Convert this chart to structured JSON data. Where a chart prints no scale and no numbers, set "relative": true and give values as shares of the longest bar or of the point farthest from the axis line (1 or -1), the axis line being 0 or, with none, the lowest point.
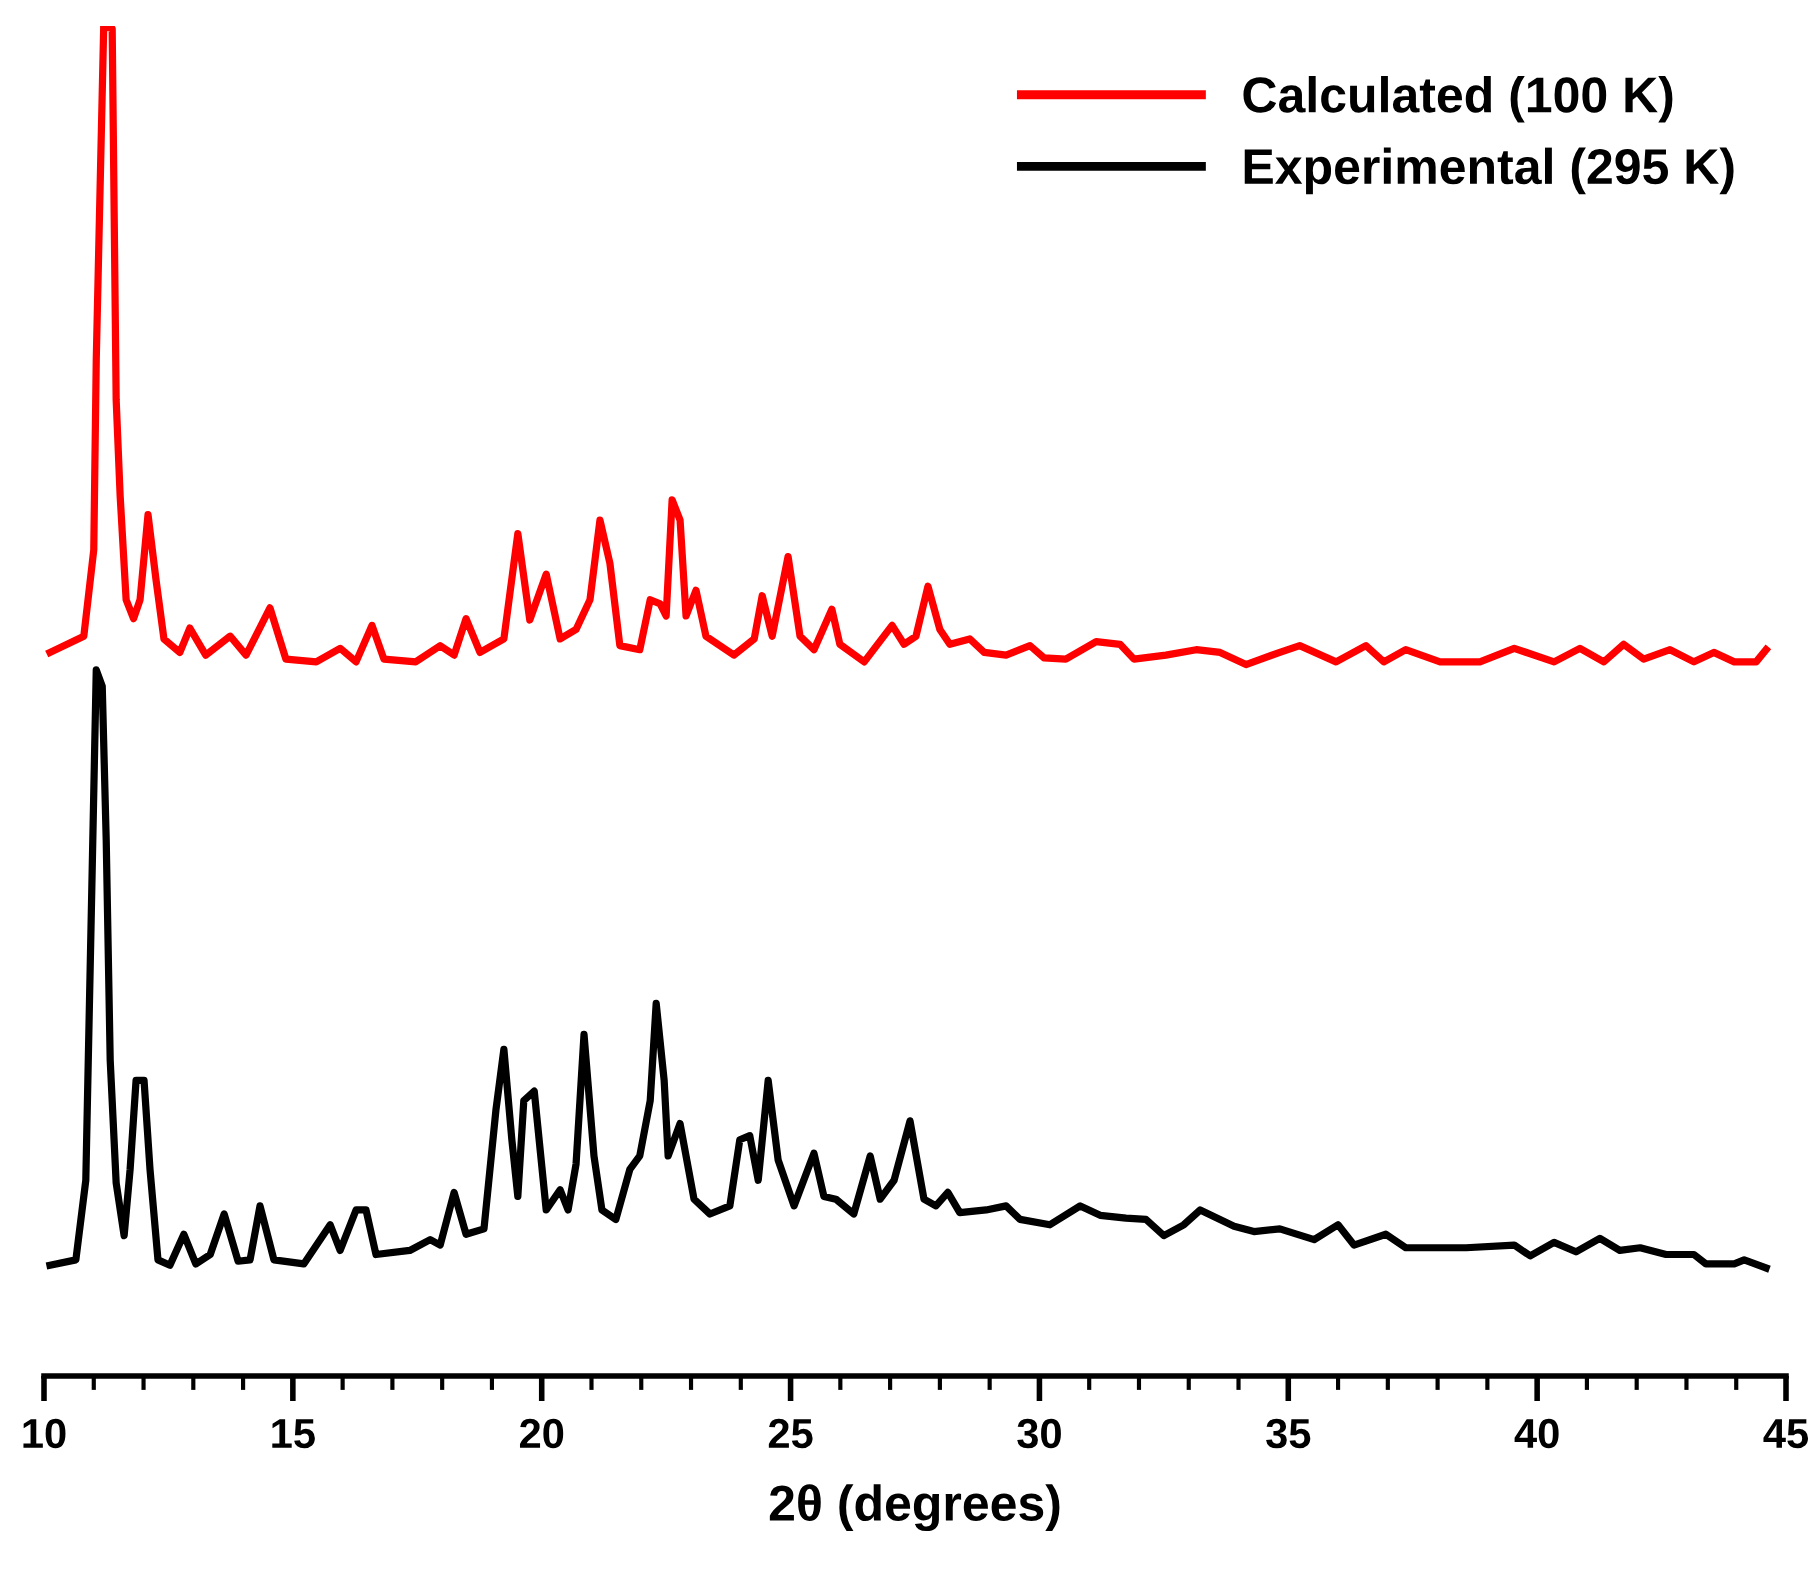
{
  "chart_data": {
    "type": "line",
    "relative": true,
    "xlabel": "2θ (degrees)",
    "xlim": [
      10,
      45
    ],
    "xticks": [
      10,
      {
        "value": 11,
        "label": null
      },
      {
        "value": 12,
        "label": null
      },
      {
        "value": 13,
        "label": null
      },
      {
        "value": 14,
        "label": null
      },
      15,
      {
        "value": 16,
        "label": null
      },
      {
        "value": 17,
        "label": null
      },
      {
        "value": 18,
        "label": null
      },
      {
        "value": 19,
        "label": null
      },
      20,
      {
        "value": 21,
        "label": null
      },
      {
        "value": 22,
        "label": null
      },
      {
        "value": 23,
        "label": null
      },
      {
        "value": 24,
        "label": null
      },
      25,
      {
        "value": 26,
        "label": null
      },
      {
        "value": 27,
        "label": null
      },
      {
        "value": 28,
        "label": null
      },
      {
        "value": 29,
        "label": null
      },
      30,
      {
        "value": 31,
        "label": null
      },
      {
        "value": 32,
        "label": null
      },
      {
        "value": 33,
        "label": null
      },
      {
        "value": 34,
        "label": null
      },
      35,
      {
        "value": 36,
        "label": null
      },
      {
        "value": 37,
        "label": null
      },
      {
        "value": 38,
        "label": null
      },
      {
        "value": 39,
        "label": null
      },
      40,
      {
        "value": 41,
        "label": null
      },
      {
        "value": 42,
        "label": null
      },
      {
        "value": 43,
        "label": null
      },
      {
        "value": 44,
        "label": null
      },
      45
    ],
    "tick_labels": "x",
    "legend": "top right",
    "grid": false,
    "marker": "none",
    "line_style": "solid",
    "series": [
      {
        "name": "Calculated (100 K)",
        "color": "#ff0000",
        "x": [
          10.12,
          10.8,
          11.0,
          11.05,
          11.2,
          11.37,
          11.45,
          11.53,
          11.65,
          11.8,
          11.93,
          12.09,
          12.25,
          12.41,
          12.73,
          12.93,
          13.25,
          13.74,
          14.06,
          14.54,
          14.86,
          15.47,
          15.95,
          16.27,
          16.59,
          16.83,
          17.47,
          17.96,
          18.24,
          18.48,
          18.76,
          19.24,
          19.52,
          19.76,
          20.09,
          20.37,
          20.69,
          20.97,
          21.17,
          21.37,
          21.57,
          21.97,
          22.18,
          22.38,
          22.5,
          22.62,
          22.78,
          22.9,
          23.1,
          23.3,
          23.86,
          24.27,
          24.43,
          24.63,
          24.95,
          25.19,
          25.47,
          25.83,
          25.99,
          26.48,
          27.04,
          27.28,
          27.52,
          27.76,
          28.0,
          28.2,
          28.6,
          28.89,
          29.33,
          29.81,
          30.09,
          30.53,
          31.14,
          31.62,
          31.9,
          32.54,
          33.15,
          33.63,
          34.15,
          34.83,
          35.23,
          35.96,
          36.56,
          36.92,
          37.36,
          38.05,
          38.85,
          39.54,
          40.34,
          40.86,
          41.34,
          41.74,
          42.14,
          42.67,
          43.15,
          43.55,
          43.96,
          44.4,
          44.6
        ],
        "values": [
          0.536,
          0.548,
          0.612,
          0.753,
          1.0,
          0.998,
          0.723,
          0.652,
          0.575,
          0.561,
          0.575,
          0.638,
          0.59,
          0.546,
          0.536,
          0.554,
          0.534,
          0.548,
          0.534,
          0.569,
          0.531,
          0.529,
          0.539,
          0.529,
          0.556,
          0.531,
          0.529,
          0.541,
          0.534,
          0.561,
          0.536,
          0.546,
          0.624,
          0.56,
          0.594,
          0.546,
          0.553,
          0.575,
          0.634,
          0.602,
          0.541,
          0.538,
          0.575,
          0.572,
          0.563,
          0.649,
          0.634,
          0.563,
          0.582,
          0.548,
          0.534,
          0.546,
          0.578,
          0.548,
          0.607,
          0.548,
          0.538,
          0.568,
          0.542,
          0.529,
          0.556,
          0.542,
          0.548,
          0.585,
          0.553,
          0.542,
          0.546,
          0.536,
          0.534,
          0.541,
          0.532,
          0.531,
          0.544,
          0.542,
          0.531,
          0.534,
          0.538,
          0.536,
          0.527,
          0.536,
          0.541,
          0.529,
          0.541,
          0.529,
          0.538,
          0.529,
          0.529,
          0.539,
          0.529,
          0.539,
          0.529,
          0.542,
          0.531,
          0.538,
          0.529,
          0.536,
          0.529,
          0.529,
          0.538
        ]
      },
      {
        "name": "Experimental (295 K)",
        "color": "#000000",
        "x": [
          10.12,
          10.64,
          10.84,
          10.96,
          11.05,
          11.17,
          11.25,
          11.33,
          11.45,
          11.61,
          11.73,
          11.85,
          12.01,
          12.13,
          12.29,
          12.53,
          12.81,
          13.05,
          13.34,
          13.62,
          13.9,
          14.14,
          14.34,
          14.62,
          15.22,
          15.75,
          15.95,
          16.27,
          16.47,
          16.67,
          17.35,
          17.76,
          17.96,
          18.24,
          18.48,
          18.84,
          19.08,
          19.24,
          19.4,
          19.52,
          19.64,
          19.85,
          20.09,
          20.37,
          20.53,
          20.69,
          20.85,
          21.05,
          21.21,
          21.49,
          21.77,
          21.97,
          22.18,
          22.3,
          22.46,
          22.54,
          22.78,
          23.06,
          23.38,
          23.78,
          23.98,
          24.18,
          24.35,
          24.55,
          24.75,
          25.07,
          25.47,
          25.67,
          25.91,
          26.27,
          26.6,
          26.8,
          27.08,
          27.4,
          27.68,
          27.92,
          28.16,
          28.4,
          28.93,
          29.33,
          29.61,
          30.21,
          30.82,
          31.22,
          31.74,
          32.14,
          32.5,
          32.9,
          33.23,
          33.91,
          34.31,
          34.83,
          35.52,
          36.0,
          36.32,
          36.96,
          37.36,
          38.57,
          39.54,
          39.86,
          40.34,
          40.78,
          41.26,
          41.66,
          42.07,
          42.59,
          43.15,
          43.39,
          43.96,
          44.16,
          44.6
        ],
        "values": [
          0.082,
          0.086,
          0.145,
          0.36,
          0.523,
          0.511,
          0.397,
          0.234,
          0.143,
          0.104,
          0.153,
          0.219,
          0.219,
          0.153,
          0.086,
          0.082,
          0.105,
          0.083,
          0.09,
          0.12,
          0.085,
          0.086,
          0.126,
          0.086,
          0.083,
          0.112,
          0.093,
          0.123,
          0.123,
          0.09,
          0.093,
          0.101,
          0.097,
          0.136,
          0.105,
          0.109,
          0.197,
          0.242,
          0.175,
          0.133,
          0.204,
          0.211,
          0.123,
          0.138,
          0.123,
          0.157,
          0.253,
          0.163,
          0.123,
          0.116,
          0.153,
          0.163,
          0.204,
          0.276,
          0.219,
          0.163,
          0.187,
          0.131,
          0.12,
          0.126,
          0.175,
          0.178,
          0.145,
          0.219,
          0.16,
          0.126,
          0.165,
          0.133,
          0.131,
          0.12,
          0.163,
          0.131,
          0.145,
          0.189,
          0.131,
          0.126,
          0.136,
          0.121,
          0.123,
          0.126,
          0.116,
          0.112,
          0.126,
          0.119,
          0.117,
          0.116,
          0.104,
          0.112,
          0.123,
          0.111,
          0.107,
          0.109,
          0.101,
          0.112,
          0.097,
          0.105,
          0.095,
          0.095,
          0.097,
          0.089,
          0.099,
          0.092,
          0.102,
          0.093,
          0.095,
          0.09,
          0.09,
          0.083,
          0.083,
          0.086,
          0.08
        ]
      }
    ]
  }
}
